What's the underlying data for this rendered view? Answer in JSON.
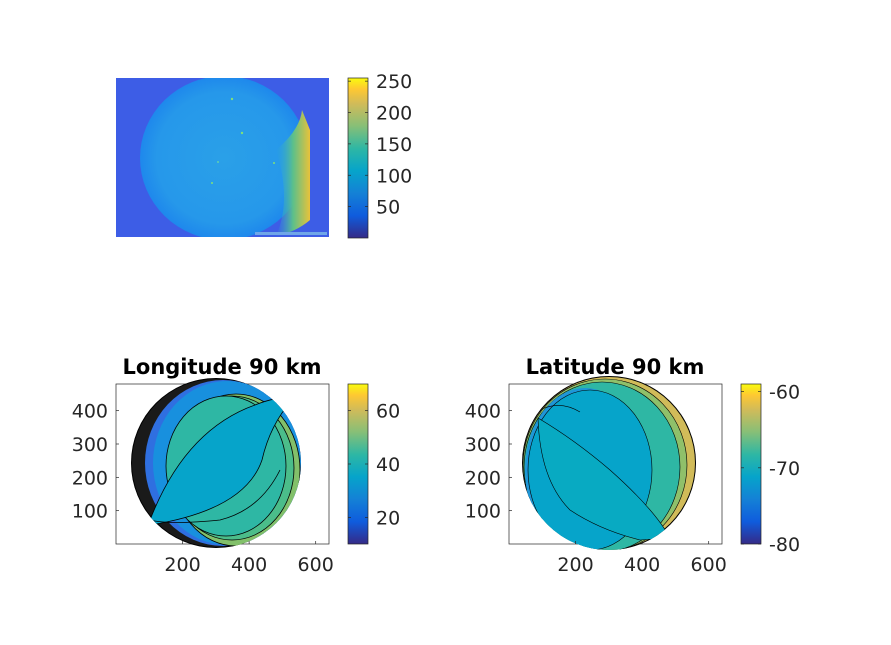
{
  "chart_data": [
    {
      "type": "heatmap",
      "title": "",
      "description_kind": "image",
      "axes_visible": false,
      "colormap": "parula",
      "clim": [
        0,
        255
      ],
      "colorbar_ticks": [
        50,
        100,
        150,
        200,
        250
      ],
      "colorbar_labels": [
        "50",
        "100",
        "150",
        "200",
        "250"
      ]
    },
    {
      "type": "heatmap",
      "title": "Longitude 90 km",
      "colormap": "parula",
      "xlim": [
        0,
        640
      ],
      "ylim": [
        0,
        480
      ],
      "xticks": [
        200,
        400,
        600
      ],
      "xtick_labels": [
        "200",
        "400",
        "600"
      ],
      "yticks": [
        100,
        200,
        300,
        400
      ],
      "ytick_labels": [
        "100",
        "200",
        "300",
        "400"
      ],
      "clim": [
        10,
        70
      ],
      "colorbar_ticks": [
        20,
        40,
        60
      ],
      "colorbar_labels": [
        "20",
        "40",
        "60"
      ]
    },
    {
      "type": "heatmap",
      "title": "Latitude 90 km",
      "colormap": "parula",
      "xlim": [
        0,
        640
      ],
      "ylim": [
        0,
        480
      ],
      "xticks": [
        200,
        400,
        600
      ],
      "xtick_labels": [
        "200",
        "400",
        "600"
      ],
      "yticks": [
        100,
        200,
        300,
        400
      ],
      "ytick_labels": [
        "100",
        "200",
        "300",
        "400"
      ],
      "clim": [
        -80,
        -59
      ],
      "colorbar_ticks": [
        -80,
        -70,
        -60
      ],
      "colorbar_labels": [
        "-80",
        "-70",
        "-60"
      ]
    }
  ]
}
